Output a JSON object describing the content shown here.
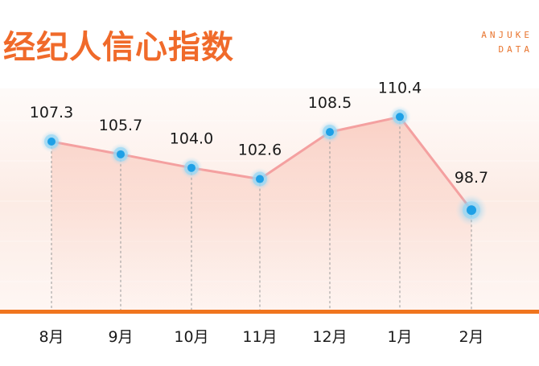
{
  "header": {
    "title": "经纪人信心指数",
    "brand_line1": "ANJUKE",
    "brand_line2": "DATA"
  },
  "colors": {
    "accent": "#f06a2a",
    "line": "#f4a0a0",
    "point": "#29a8e8",
    "area": "#fde3dc",
    "axis": "#f0751e"
  },
  "chart_data": {
    "type": "line",
    "categories": [
      "8月",
      "9月",
      "10月",
      "11月",
      "12月",
      "1月",
      "2月"
    ],
    "values": [
      107.3,
      105.7,
      104.0,
      102.6,
      108.5,
      110.4,
      98.7
    ],
    "title": "经纪人信心指数",
    "xlabel": "",
    "ylabel": "",
    "ylim": [
      86,
      118
    ],
    "grid": false,
    "legend": "none"
  }
}
